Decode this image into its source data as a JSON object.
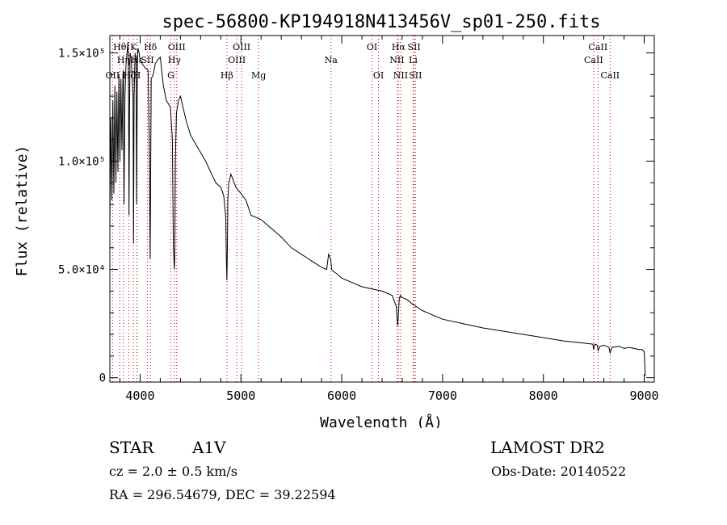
{
  "chart_data": {
    "type": "line",
    "title": "spec-56800-KP194918N413456V_sp01-250.fits",
    "xlabel": "Wavelength (Å)",
    "ylabel": "Flux (relative)",
    "xlim": [
      3700,
      9100
    ],
    "ylim": [
      -2000,
      158000
    ],
    "x_ticks": [
      4000,
      5000,
      6000,
      7000,
      8000,
      9000
    ],
    "y_ticks": [
      {
        "value": 0,
        "label": "0"
      },
      {
        "value": 50000,
        "label": "5.0×10⁴"
      },
      {
        "value": 100000,
        "label": "1.0×10⁵"
      },
      {
        "value": 150000,
        "label": "1.5×10⁵"
      }
    ],
    "grid": false,
    "line_color": "#000000",
    "marker_color": "#cc0000",
    "spectrum": {
      "x": [
        3700,
        3710,
        3720,
        3730,
        3740,
        3750,
        3760,
        3770,
        3780,
        3790,
        3800,
        3810,
        3820,
        3830,
        3835,
        3840,
        3850,
        3860,
        3870,
        3880,
        3885,
        3890,
        3895,
        3900,
        3910,
        3920,
        3930,
        3935,
        3940,
        3950,
        3960,
        3965,
        3970,
        3975,
        3980,
        3990,
        4000,
        4020,
        4050,
        4080,
        4090,
        4100,
        4105,
        4110,
        4130,
        4150,
        4180,
        4200,
        4230,
        4260,
        4300,
        4320,
        4330,
        4340,
        4345,
        4350,
        4360,
        4380,
        4400,
        4430,
        4460,
        4500,
        4550,
        4600,
        4650,
        4700,
        4750,
        4800,
        4830,
        4850,
        4855,
        4861,
        4866,
        4870,
        4880,
        4900,
        4950,
        5000,
        5050,
        5100,
        5150,
        5200,
        5300,
        5400,
        5500,
        5600,
        5700,
        5800,
        5850,
        5870,
        5890,
        5900,
        5920,
        5950,
        6000,
        6100,
        6200,
        6300,
        6400,
        6500,
        6540,
        6555,
        6563,
        6570,
        6580,
        6600,
        6650,
        6700,
        6800,
        6900,
        7000,
        7200,
        7400,
        7600,
        7800,
        8000,
        8200,
        8400,
        8490,
        8498,
        8510,
        8535,
        8542,
        8560,
        8600,
        8650,
        8662,
        8680,
        8750,
        8800,
        8850,
        8900,
        8950,
        8980,
        9000,
        9010
      ],
      "y": [
        70000,
        120000,
        82000,
        128000,
        85000,
        135000,
        90000,
        132000,
        95000,
        140000,
        100000,
        138000,
        105000,
        140000,
        142000,
        80000,
        130000,
        145000,
        150000,
        155000,
        140000,
        75000,
        120000,
        150000,
        148000,
        140000,
        130000,
        62000,
        130000,
        150000,
        145000,
        80000,
        120000,
        150000,
        152000,
        150000,
        147000,
        145000,
        143000,
        142000,
        110000,
        55000,
        100000,
        138000,
        140000,
        145000,
        147000,
        148000,
        135000,
        128000,
        125000,
        110000,
        60000,
        50000,
        58000,
        100000,
        122000,
        128000,
        130000,
        124000,
        118000,
        112000,
        108000,
        104000,
        100000,
        95000,
        90000,
        88000,
        84000,
        74000,
        55000,
        45000,
        60000,
        82000,
        90000,
        94000,
        88000,
        85000,
        82000,
        75000,
        74000,
        73000,
        69000,
        65000,
        60000,
        57000,
        54000,
        51000,
        50000,
        57000,
        55000,
        50000,
        49000,
        48000,
        46000,
        44000,
        42000,
        41000,
        40000,
        38000,
        33000,
        24000,
        30000,
        36000,
        38000,
        37000,
        36000,
        34000,
        31000,
        29000,
        27000,
        25000,
        23000,
        21500,
        20000,
        18500,
        17000,
        16000,
        15500,
        13000,
        15500,
        15000,
        12500,
        14500,
        15000,
        14000,
        11500,
        14000,
        14500,
        13500,
        14000,
        13500,
        13000,
        13000,
        12000,
        1000
      ]
    },
    "lines": [
      {
        "name": "OII",
        "x": 3727,
        "row": 3
      },
      {
        "name": "Hθ",
        "x": 3798,
        "row": 1
      },
      {
        "name": "Hη",
        "x": 3835,
        "row": 2
      },
      {
        "name": "Hζ",
        "x": 3889,
        "row": 3
      },
      {
        "name": "K",
        "x": 3934,
        "row": 1
      },
      {
        "name": "H",
        "x": 3969,
        "row": 3
      },
      {
        "name": "Hε",
        "x": 3970,
        "row": 2
      },
      {
        "name": "SII",
        "x": 4072,
        "row": 2
      },
      {
        "name": "Hδ",
        "x": 4102,
        "row": 1
      },
      {
        "name": "G",
        "x": 4305,
        "row": 3
      },
      {
        "name": "Hγ",
        "x": 4340,
        "row": 2
      },
      {
        "name": "OIII",
        "x": 4363,
        "row": 1
      },
      {
        "name": "Hβ",
        "x": 4861,
        "row": 3
      },
      {
        "name": "OIII",
        "x": 4959,
        "row": 2
      },
      {
        "name": "OIII",
        "x": 5007,
        "row": 1
      },
      {
        "name": "Mg",
        "x": 5175,
        "row": 3
      },
      {
        "name": "Na",
        "x": 5893,
        "row": 2
      },
      {
        "name": "OI",
        "x": 6300,
        "row": 1
      },
      {
        "name": "OI",
        "x": 6364,
        "row": 3
      },
      {
        "name": "NII",
        "x": 6548,
        "row": 2
      },
      {
        "name": "Hα",
        "x": 6563,
        "row": 1
      },
      {
        "name": "NII",
        "x": 6584,
        "row": 3
      },
      {
        "name": "Li",
        "x": 6708,
        "row": 2
      },
      {
        "name": "SII",
        "x": 6717,
        "row": 1
      },
      {
        "name": "SII",
        "x": 6731,
        "row": 3
      },
      {
        "name": "CaII",
        "x": 8498,
        "row": 2
      },
      {
        "name": "CaII",
        "x": 8542,
        "row": 1
      },
      {
        "name": "CaII",
        "x": 8662,
        "row": 3
      }
    ]
  },
  "info": {
    "object_class": "STAR",
    "subclass": "A1V",
    "survey": "LAMOST DR2",
    "redshift": "cz = 2.0 ± 0.5 km/s",
    "obs_date": "Obs-Date: 20140522",
    "coords": "RA = 296.54679, DEC =  39.22594"
  }
}
